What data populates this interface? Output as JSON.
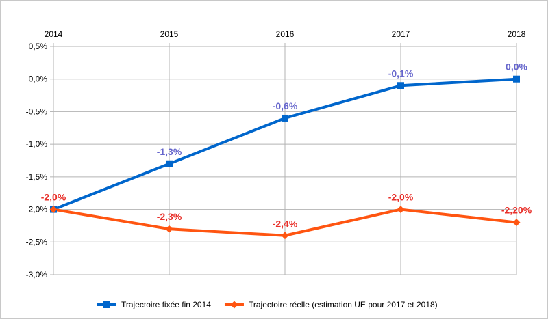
{
  "chart_data": {
    "type": "line",
    "title": "",
    "xlabel": "",
    "ylabel": "",
    "x": [
      "2014",
      "2015",
      "2016",
      "2017",
      "2018"
    ],
    "ylim": [
      -3.0,
      0.5
    ],
    "y_ticks": [
      "0,5%",
      "0,0%",
      "-0,5%",
      "-1,0%",
      "-1,5%",
      "-2,0%",
      "-2,5%",
      "-3,0%"
    ],
    "y_tick_values": [
      0.5,
      0.0,
      -0.5,
      -1.0,
      -1.5,
      -2.0,
      -2.5,
      -3.0
    ],
    "grid": true,
    "x_axis_position": "top",
    "legend_position": "bottom",
    "series": [
      {
        "name": "Trajectoire fixée fin 2014",
        "values": [
          -2.0,
          -1.3,
          -0.6,
          -0.1,
          0.0
        ],
        "labels": [
          "",
          "-1,3%",
          "-0,6%",
          "-0,1%",
          "0,0%"
        ],
        "color": "#0066cc",
        "label_color": "#6666cc",
        "marker": "square"
      },
      {
        "name": "Trajectoire réelle (estimation UE pour 2017 et 2018)",
        "values": [
          -2.0,
          -2.3,
          -2.4,
          -2.0,
          -2.2
        ],
        "labels": [
          "-2,0%",
          "-2,3%",
          "-2,4%",
          "-2,0%",
          "-2,20%"
        ],
        "color": "#ff5511",
        "label_color": "#e8302a",
        "marker": "diamond"
      }
    ]
  }
}
